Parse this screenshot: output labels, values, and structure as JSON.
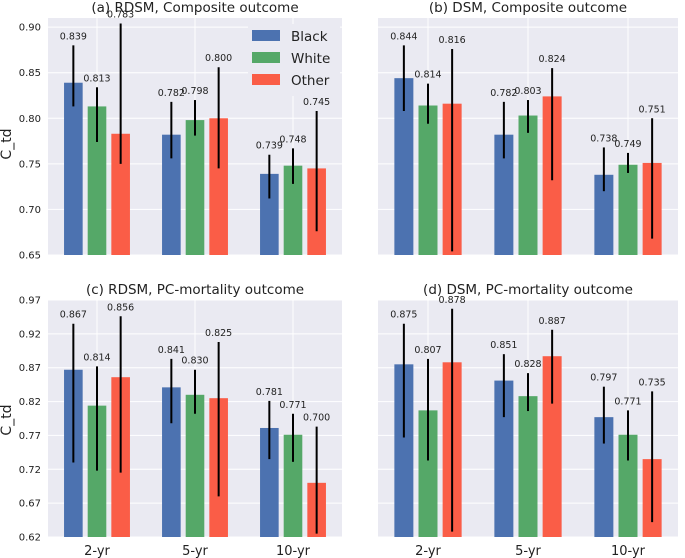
{
  "ylabel": "C_td",
  "legend": [
    {
      "name": "Black",
      "color": "#4c72b0"
    },
    {
      "name": "White",
      "color": "#55a868"
    },
    {
      "name": "Other",
      "color": "#fa5d47"
    }
  ],
  "chart_data": [
    {
      "type": "bar",
      "title": "(a) RDSM, Composite outcome",
      "categories": [
        "2-yr",
        "5-yr",
        "10-yr"
      ],
      "ylim": [
        0.65,
        0.91
      ],
      "yticks": [
        "0.65",
        "0.70",
        "0.75",
        "0.80",
        "0.85",
        "0.90"
      ],
      "yticks_num": [
        0.65,
        0.7,
        0.75,
        0.8,
        0.85,
        0.9
      ],
      "series": [
        {
          "name": "Black",
          "values": [
            0.839,
            0.782,
            0.739
          ],
          "labels": [
            "0.839",
            "0.782",
            "0.739"
          ],
          "err_low": [
            0.813,
            0.756,
            0.712
          ],
          "err_high": [
            0.88,
            0.818,
            0.76
          ]
        },
        {
          "name": "White",
          "values": [
            0.813,
            0.798,
            0.748
          ],
          "labels": [
            "0.813",
            "0.798",
            "0.748"
          ],
          "err_low": [
            0.774,
            0.781,
            0.728
          ],
          "err_high": [
            0.834,
            0.82,
            0.767
          ]
        },
        {
          "name": "Other",
          "values": [
            0.783,
            0.8,
            0.745
          ],
          "labels": [
            "0.783",
            "0.800",
            "0.745"
          ],
          "err_low": [
            0.75,
            0.745,
            0.676
          ],
          "err_high": [
            0.904,
            0.856,
            0.808
          ]
        }
      ]
    },
    {
      "type": "bar",
      "title": "(b) DSM, Composite outcome",
      "categories": [
        "2-yr",
        "5-yr",
        "10-yr"
      ],
      "ylim": [
        0.65,
        0.91
      ],
      "yticks": [],
      "yticks_num": [
        0.65,
        0.7,
        0.75,
        0.8,
        0.85,
        0.9
      ],
      "series": [
        {
          "name": "Black",
          "values": [
            0.844,
            0.782,
            0.738
          ],
          "labels": [
            "0.844",
            "0.782",
            "0.738"
          ],
          "err_low": [
            0.808,
            0.756,
            0.72
          ],
          "err_high": [
            0.88,
            0.818,
            0.768
          ]
        },
        {
          "name": "White",
          "values": [
            0.814,
            0.803,
            0.749
          ],
          "labels": [
            "0.814",
            "0.803",
            "0.749"
          ],
          "err_low": [
            0.794,
            0.784,
            0.74
          ],
          "err_high": [
            0.838,
            0.82,
            0.762
          ]
        },
        {
          "name": "Other",
          "values": [
            0.816,
            0.824,
            0.751
          ],
          "labels": [
            "0.816",
            "0.824",
            "0.751"
          ],
          "err_low": [
            0.654,
            0.732,
            0.668
          ],
          "err_high": [
            0.876,
            0.855,
            0.8
          ]
        }
      ]
    },
    {
      "type": "bar",
      "title": "(c) RDSM, PC-mortality outcome",
      "categories": [
        "2-yr",
        "5-yr",
        "10-yr"
      ],
      "ylim": [
        0.62,
        0.97
      ],
      "yticks": [
        "0.62",
        "0.67",
        "0.72",
        "0.77",
        "0.82",
        "0.87",
        "0.92",
        "0.97"
      ],
      "yticks_num": [
        0.62,
        0.67,
        0.72,
        0.77,
        0.82,
        0.87,
        0.92,
        0.97
      ],
      "series": [
        {
          "name": "Black",
          "values": [
            0.867,
            0.841,
            0.781
          ],
          "labels": [
            "0.867",
            "0.841",
            "0.781"
          ],
          "err_low": [
            0.73,
            0.788,
            0.735
          ],
          "err_high": [
            0.935,
            0.883,
            0.821
          ]
        },
        {
          "name": "White",
          "values": [
            0.814,
            0.83,
            0.771
          ],
          "labels": [
            "0.814",
            "0.830",
            "0.771"
          ],
          "err_low": [
            0.718,
            0.802,
            0.731
          ],
          "err_high": [
            0.872,
            0.867,
            0.802
          ]
        },
        {
          "name": "Other",
          "values": [
            0.856,
            0.825,
            0.7
          ],
          "labels": [
            "0.856",
            "0.825",
            "0.700"
          ],
          "err_low": [
            0.715,
            0.68,
            0.625
          ],
          "err_high": [
            0.946,
            0.908,
            0.783
          ]
        }
      ]
    },
    {
      "type": "bar",
      "title": "(d) DSM, PC-mortality outcome",
      "categories": [
        "2-yr",
        "5-yr",
        "10-yr"
      ],
      "ylim": [
        0.62,
        0.97
      ],
      "yticks": [],
      "yticks_num": [
        0.62,
        0.67,
        0.72,
        0.77,
        0.82,
        0.87,
        0.92,
        0.97
      ],
      "series": [
        {
          "name": "Black",
          "values": [
            0.875,
            0.851,
            0.797
          ],
          "labels": [
            "0.875",
            "0.851",
            "0.797"
          ],
          "err_low": [
            0.767,
            0.797,
            0.758
          ],
          "err_high": [
            0.935,
            0.89,
            0.842
          ]
        },
        {
          "name": "White",
          "values": [
            0.807,
            0.828,
            0.771
          ],
          "labels": [
            "0.807",
            "0.828",
            "0.771"
          ],
          "err_low": [
            0.733,
            0.806,
            0.733
          ],
          "err_high": [
            0.883,
            0.862,
            0.807
          ]
        },
        {
          "name": "Other",
          "values": [
            0.878,
            0.887,
            0.735
          ],
          "labels": [
            "0.878",
            "0.887",
            "0.735"
          ],
          "err_low": [
            0.628,
            0.817,
            0.642
          ],
          "err_high": [
            0.957,
            0.926,
            0.835
          ]
        }
      ]
    }
  ]
}
